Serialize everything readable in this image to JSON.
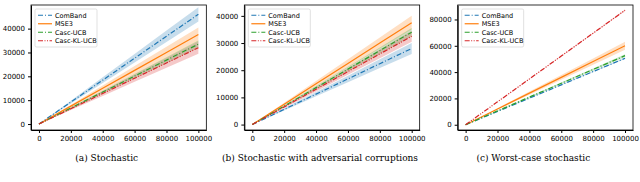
{
  "chart_data": [
    {
      "type": "line",
      "title": "(a) Stochastic",
      "x": [
        0,
        20000,
        40000,
        60000,
        80000,
        100000
      ],
      "xlim": [
        -5000,
        105000
      ],
      "xticks": [
        0,
        20000,
        40000,
        60000,
        80000,
        100000
      ],
      "ylim": [
        -2500,
        49900
      ],
      "yticks": [
        0,
        10000,
        20000,
        30000,
        40000
      ],
      "legend": "upper left",
      "series": [
        {
          "name": "ComBand",
          "color": "#1f77b4",
          "line_style": "dashdot",
          "values": [
            0,
            9200,
            18400,
            27600,
            36800,
            46000
          ],
          "lower": [
            0,
            8600,
            17200,
            25800,
            34400,
            43000
          ],
          "upper": [
            0,
            9800,
            19600,
            29400,
            39200,
            49000
          ]
        },
        {
          "name": "MSE3",
          "color": "#ff7f0e",
          "line_style": "solid",
          "values": [
            0,
            7500,
            15000,
            22500,
            30000,
            37500
          ],
          "lower": [
            0,
            6900,
            13800,
            20700,
            27600,
            34500
          ],
          "upper": [
            0,
            8100,
            16200,
            24300,
            32400,
            40500
          ]
        },
        {
          "name": "Casc-UCB",
          "color": "#2ca02c",
          "line_style": "dashdot",
          "values": [
            0,
            6700,
            13400,
            20100,
            26800,
            33500
          ],
          "lower": [
            0,
            6400,
            12800,
            19200,
            25600,
            32000
          ],
          "upper": [
            0,
            7000,
            14000,
            21000,
            28000,
            35000
          ]
        },
        {
          "name": "Casc-KL-UCB",
          "color": "#d62728",
          "line_style": "dashdotdot",
          "values": [
            0,
            6400,
            12800,
            19200,
            25600,
            32000
          ],
          "lower": [
            0,
            5900,
            11800,
            17700,
            23600,
            29500
          ],
          "upper": [
            0,
            6900,
            13800,
            20700,
            27600,
            34500
          ]
        }
      ]
    },
    {
      "type": "line",
      "title": "(b) Stochastic with adversarial corruptions",
      "x": [
        0,
        20000,
        40000,
        60000,
        80000,
        100000
      ],
      "xlim": [
        -5000,
        105000
      ],
      "xticks": [
        0,
        20000,
        40000,
        60000,
        80000,
        100000
      ],
      "ylim": [
        -2000,
        44000
      ],
      "yticks": [
        0,
        10000,
        20000,
        30000,
        40000
      ],
      "legend": "upper left",
      "series": [
        {
          "name": "ComBand",
          "color": "#1f77b4",
          "line_style": "dashdot",
          "values": [
            0,
            5600,
            11200,
            16800,
            22400,
            28000
          ],
          "lower": [
            0,
            5200,
            10400,
            15600,
            20800,
            26000
          ],
          "upper": [
            0,
            6000,
            12000,
            18000,
            24000,
            30000
          ]
        },
        {
          "name": "MSE3",
          "color": "#ff7f0e",
          "line_style": "solid",
          "values": [
            0,
            7500,
            15000,
            22500,
            30000,
            37500
          ],
          "lower": [
            0,
            7000,
            14000,
            21000,
            28000,
            35000
          ],
          "upper": [
            0,
            8000,
            16000,
            24000,
            32000,
            40000
          ]
        },
        {
          "name": "Casc-UCB",
          "color": "#2ca02c",
          "line_style": "dashdot",
          "values": [
            0,
            6800,
            13600,
            20400,
            27200,
            34000
          ],
          "lower": [
            0,
            6500,
            13000,
            19500,
            26000,
            32500
          ],
          "upper": [
            0,
            7100,
            14200,
            21300,
            28400,
            35500
          ]
        },
        {
          "name": "Casc-KL-UCB",
          "color": "#d62728",
          "line_style": "dashdotdot",
          "values": [
            0,
            6500,
            13000,
            19500,
            26000,
            32500
          ],
          "lower": [
            0,
            6100,
            12200,
            18300,
            24400,
            30500
          ],
          "upper": [
            0,
            6900,
            13800,
            20700,
            27600,
            34500
          ]
        }
      ]
    },
    {
      "type": "line",
      "title": "(c) Worst-case stochastic",
      "x": [
        0,
        20000,
        40000,
        60000,
        80000,
        100000
      ],
      "xlim": [
        -5000,
        105000
      ],
      "xticks": [
        0,
        20000,
        40000,
        60000,
        80000,
        100000
      ],
      "ylim": [
        -4000,
        91000
      ],
      "yticks": [
        0,
        20000,
        40000,
        60000,
        80000
      ],
      "legend": "upper left",
      "series": [
        {
          "name": "ComBand",
          "color": "#1f77b4",
          "line_style": "dashdot",
          "values": [
            0,
            10100,
            20200,
            30300,
            40400,
            50500
          ],
          "lower": [
            0,
            10000,
            20000,
            30000,
            40000,
            50000
          ],
          "upper": [
            0,
            10200,
            20400,
            30600,
            40800,
            51000
          ]
        },
        {
          "name": "MSE3",
          "color": "#ff7f0e",
          "line_style": "solid",
          "values": [
            0,
            12000,
            24000,
            36000,
            48000,
            60000
          ],
          "lower": [
            0,
            11400,
            22800,
            34200,
            45600,
            57000
          ],
          "upper": [
            0,
            12600,
            25200,
            37800,
            50400,
            63000
          ]
        },
        {
          "name": "Casc-UCB",
          "color": "#2ca02c",
          "line_style": "dashdot",
          "values": [
            0,
            10500,
            21000,
            31500,
            42000,
            52500
          ],
          "lower": [
            0,
            10300,
            20600,
            30900,
            41200,
            51500
          ],
          "upper": [
            0,
            10700,
            21400,
            32100,
            42800,
            53500
          ]
        },
        {
          "name": "Casc-KL-UCB",
          "color": "#d62728",
          "line_style": "dashdotdot",
          "values": [
            0,
            17400,
            34800,
            52200,
            69600,
            87000
          ],
          "lower": [
            0,
            17300,
            34600,
            51900,
            69200,
            86500
          ],
          "upper": [
            0,
            17500,
            35000,
            52500,
            70000,
            87500
          ]
        }
      ]
    }
  ]
}
